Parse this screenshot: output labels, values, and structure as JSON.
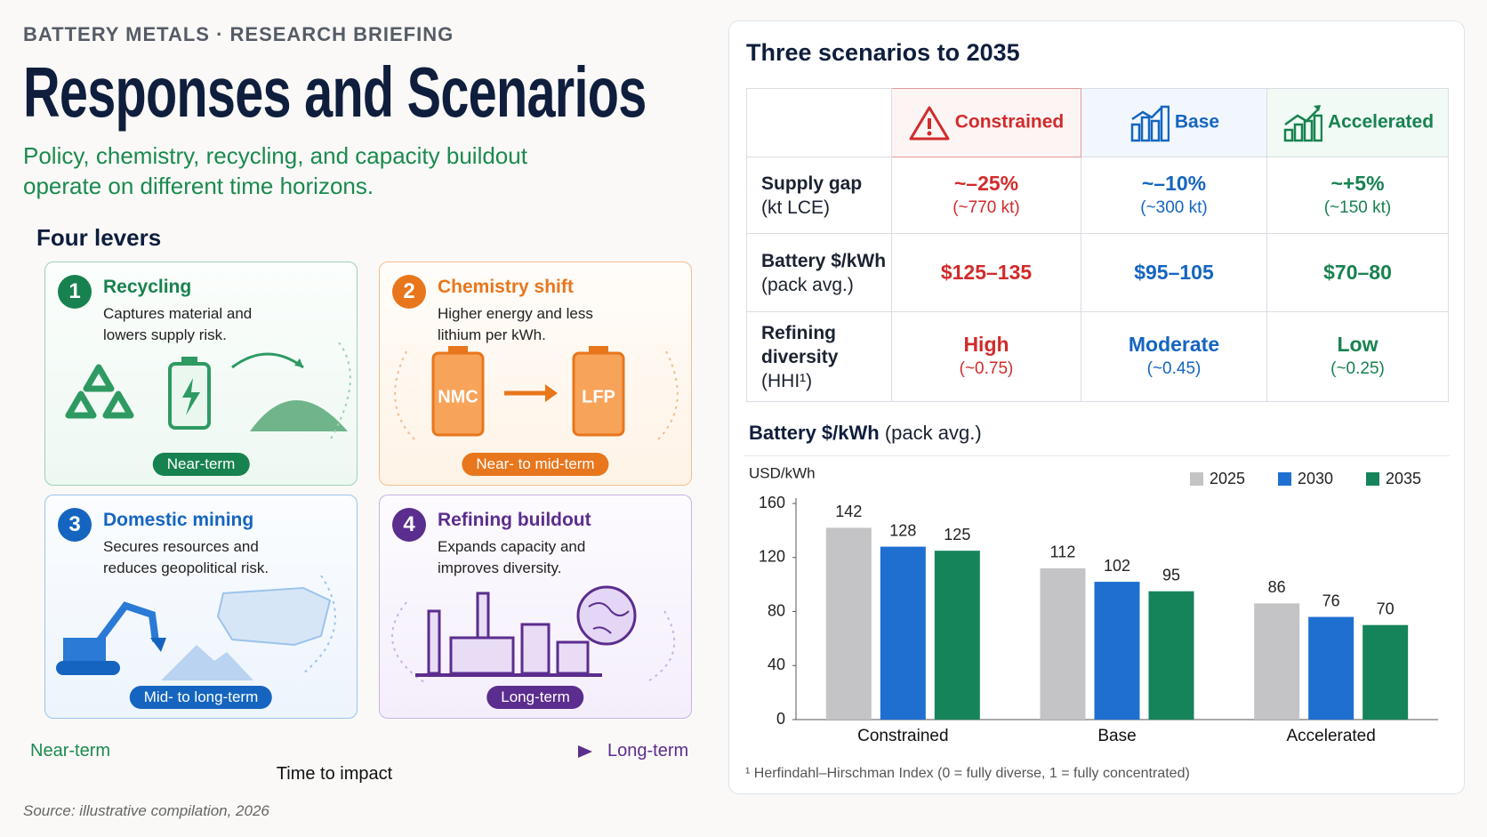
{
  "header": {
    "kicker": "BATTERY METALS · RESEARCH BRIEFING",
    "title": "Responses and Scenarios",
    "subtitle": "Policy, chemistry, recycling, and capacity buildout operate on different time horizons."
  },
  "levers": {
    "heading": "Four levers",
    "items": [
      {
        "number": "1",
        "title": "Recycling",
        "description": "Captures material and lowers supply risk.",
        "horizon": "Near-term"
      },
      {
        "number": "2",
        "title": "Chemistry shift",
        "description": "Higher energy and less lithium per kWh.",
        "horizon": "Near- to mid-term",
        "icon_labels": [
          "NMC",
          "LFP"
        ]
      },
      {
        "number": "3",
        "title": "Domestic mining",
        "description": "Secures resources and reduces geopolitical risk.",
        "horizon": "Mid- to long-term"
      },
      {
        "number": "4",
        "title": "Refining buildout",
        "description": "Expands capacity and improves diversity.",
        "horizon": "Long-term"
      }
    ]
  },
  "timeline": {
    "start": "Near-term",
    "end": "Long-term",
    "label": "Time to impact"
  },
  "source": "Source: illustrative compilation, 2026",
  "scenarios": {
    "title": "Three scenarios to 2035",
    "columns": [
      "Constrained",
      "Base",
      "Accelerated"
    ],
    "rows": [
      {
        "label": "Supply gap",
        "unit": "(kt LCE)",
        "cells": [
          {
            "value": "~–25%",
            "note": "(~770 kt)"
          },
          {
            "value": "~–10%",
            "note": "(~300 kt)"
          },
          {
            "value": "~+5%",
            "note": "(~150 kt)"
          }
        ]
      },
      {
        "label": "Battery $/kWh",
        "unit": "(pack avg.)",
        "cells": [
          {
            "value": "$125–135"
          },
          {
            "value": "$95–105"
          },
          {
            "value": "$70–80"
          }
        ]
      },
      {
        "label": "Refining diversity",
        "unit": "(HHI¹)",
        "cells": [
          {
            "value": "High",
            "note": "(~0.75)"
          },
          {
            "value": "Moderate",
            "note": "(~0.45)"
          },
          {
            "value": "Low",
            "note": "(~0.25)"
          }
        ]
      }
    ],
    "footnote": "¹ Herfindahl–Hirschman Index (0 = fully diverse, 1 = fully concentrated)"
  },
  "chart_data": {
    "type": "bar",
    "title": "Battery $/kWh",
    "subtitle": "(pack avg.)",
    "y_label": "USD/kWh",
    "categories": [
      "Constrained",
      "Base",
      "Accelerated"
    ],
    "series": [
      {
        "name": "2025",
        "color": "#c4c4c6",
        "values": [
          142,
          112,
          86
        ]
      },
      {
        "name": "2030",
        "color": "#1f6fd1",
        "values": [
          128,
          102,
          76
        ]
      },
      {
        "name": "2035",
        "color": "#16845a",
        "values": [
          125,
          95,
          70
        ]
      }
    ],
    "ylim": [
      0,
      160
    ],
    "yticks": [
      0,
      40,
      80,
      120,
      160
    ],
    "grid": false
  }
}
